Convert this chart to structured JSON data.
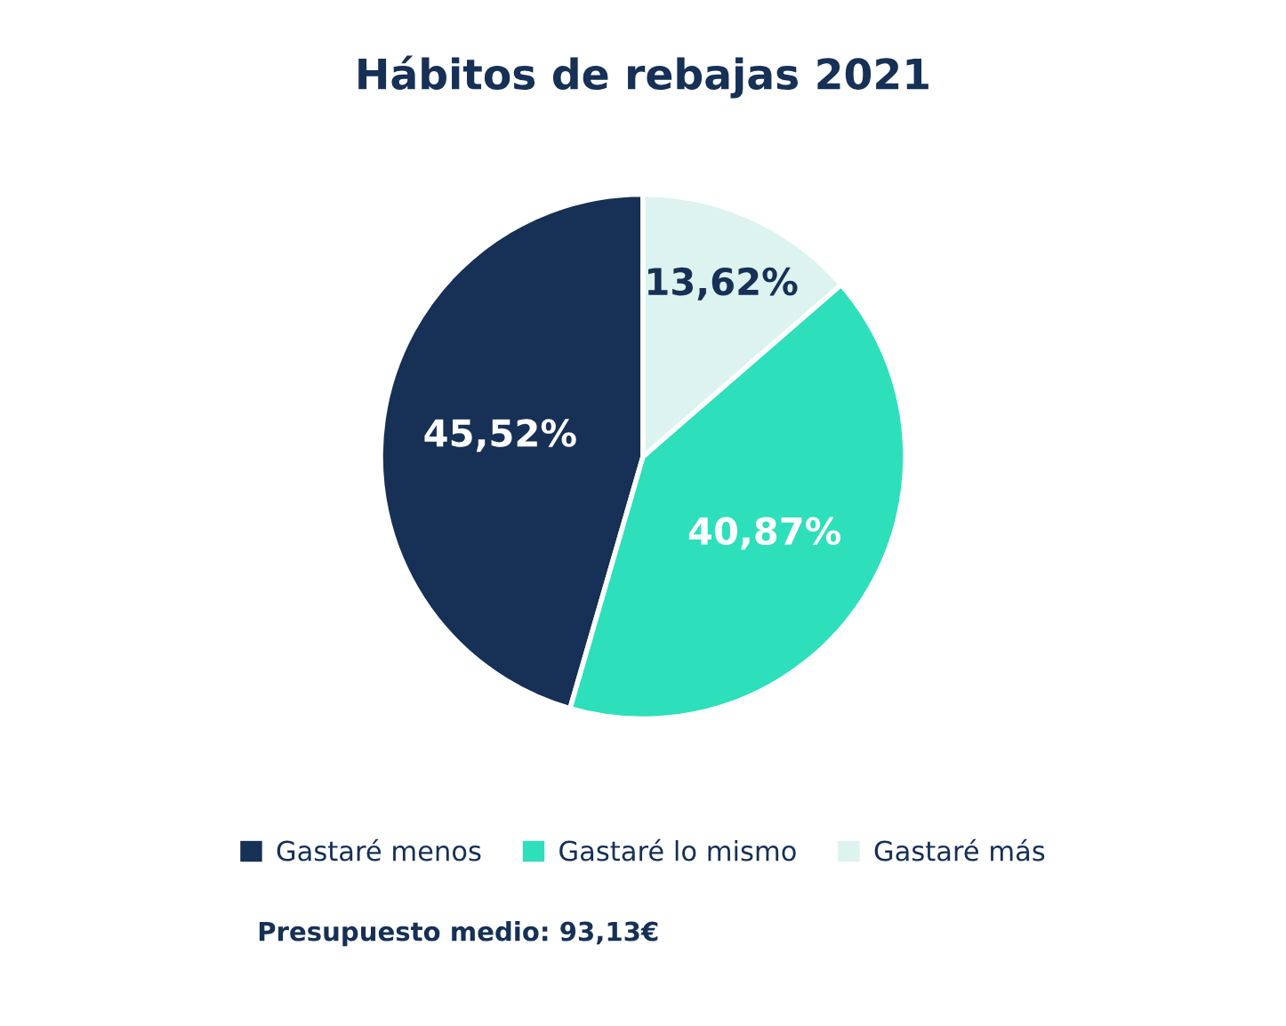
{
  "chart_data": {
    "type": "pie",
    "title": "Hábitos de rebajas 2021",
    "categories": [
      "Gastaré menos",
      "Gastaré lo mismo",
      "Gastaré más"
    ],
    "values": [
      45.52,
      40.87,
      13.62
    ],
    "colors": [
      "#163056",
      "#2ddfbb",
      "#dcf3ef"
    ],
    "value_labels": [
      "45,52%",
      "40,87%",
      "13,62%"
    ],
    "legend": "bottom",
    "annotations": [
      "Presupuesto medio: 93,13€"
    ]
  }
}
